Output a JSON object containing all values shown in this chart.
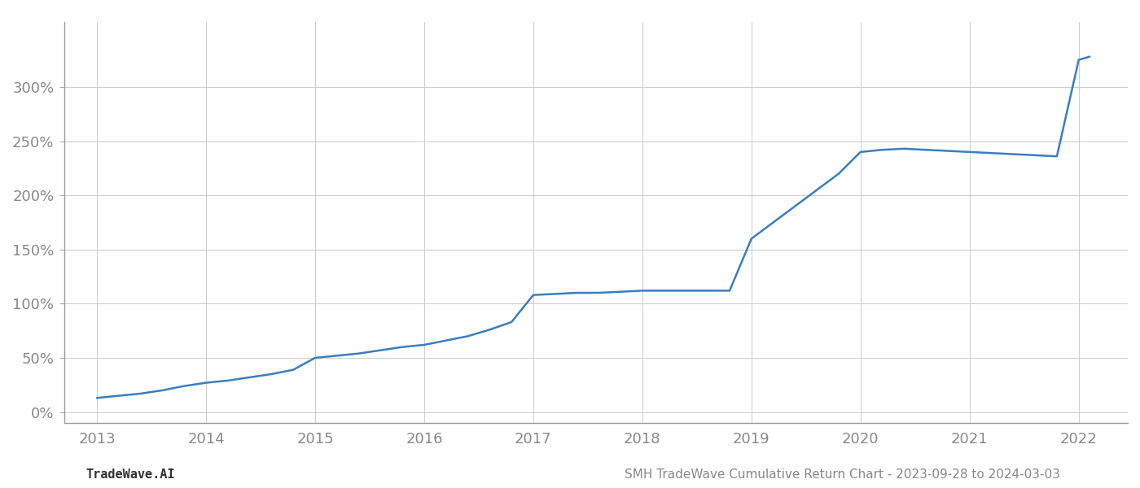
{
  "title": "",
  "footer_left": "TradeWave.AI",
  "footer_right": "SMH TradeWave Cumulative Return Chart - 2023-09-28 to 2024-03-03",
  "line_color": "#3a7ebf",
  "background_color": "#ffffff",
  "grid_color": "#cccccc",
  "x_years": [
    2013,
    2014,
    2015,
    2016,
    2017,
    2018,
    2019,
    2020,
    2021,
    2022
  ],
  "x_values": [
    2013.0,
    2013.2,
    2013.4,
    2013.6,
    2013.8,
    2014.0,
    2014.2,
    2014.4,
    2014.6,
    2014.8,
    2015.0,
    2015.2,
    2015.4,
    2015.6,
    2015.8,
    2016.0,
    2016.2,
    2016.4,
    2016.6,
    2016.8,
    2017.0,
    2017.2,
    2017.4,
    2017.6,
    2017.8,
    2018.0,
    2018.2,
    2018.4,
    2018.6,
    2018.8,
    2019.0,
    2019.2,
    2019.4,
    2019.6,
    2019.8,
    2020.0,
    2020.2,
    2020.4,
    2020.6,
    2020.8,
    2021.0,
    2021.2,
    2021.4,
    2021.6,
    2021.8,
    2022.0,
    2022.1
  ],
  "y_values": [
    13,
    15,
    17,
    20,
    24,
    27,
    29,
    32,
    35,
    39,
    50,
    52,
    54,
    57,
    60,
    62,
    66,
    70,
    76,
    83,
    108,
    109,
    110,
    110,
    111,
    112,
    112,
    112,
    112,
    112,
    160,
    175,
    190,
    205,
    220,
    240,
    242,
    243,
    242,
    241,
    240,
    239,
    238,
    237,
    236,
    325,
    328
  ],
  "ylim": [
    -10,
    360
  ],
  "yticks": [
    0,
    50,
    100,
    150,
    200,
    250,
    300
  ],
  "xlim": [
    2012.7,
    2022.45
  ],
  "line_width": 1.8,
  "footer_fontsize": 11,
  "tick_fontsize": 13,
  "axis_color": "#888888",
  "tick_color": "#aaaaaa"
}
